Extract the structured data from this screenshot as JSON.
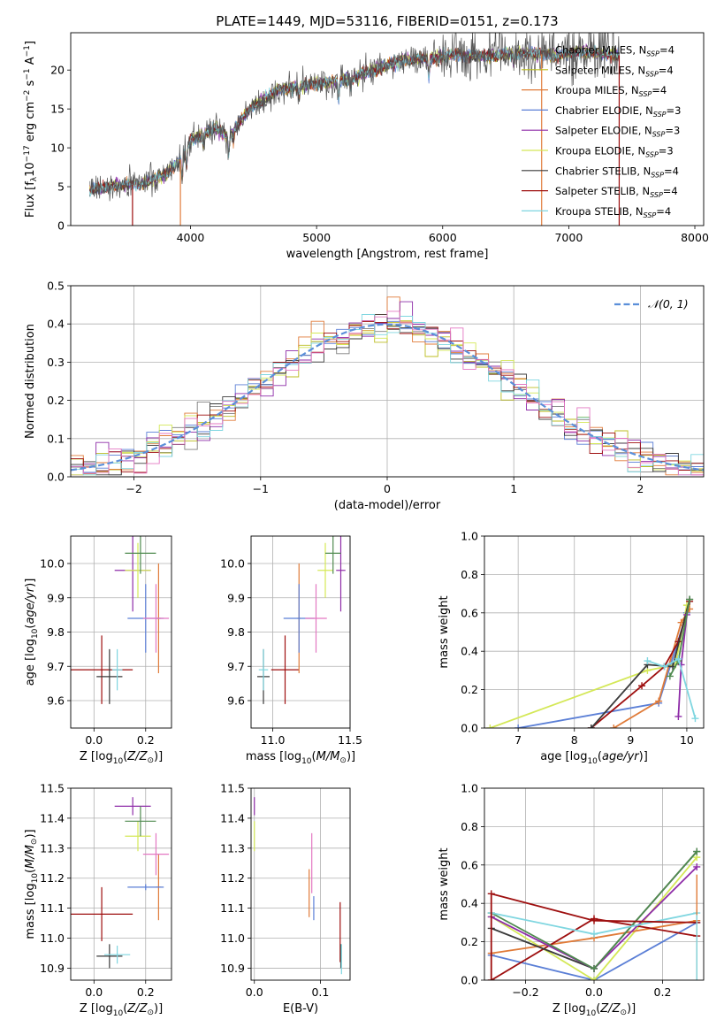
{
  "figure": {
    "title": "PLATE=1449, MJD=53116, FIBERID=0151, z=0.173"
  },
  "colors": {
    "Chabrier MILES": "#7f7f7f",
    "Salpeter MILES": "#bcbd22",
    "Kroupa MILES": "#e07b39",
    "Chabrier ELODIE": "#5b7fd6",
    "Salpeter ELODIE": "#8e2ca8",
    "Kroupa ELODIE": "#d4e857",
    "Chabrier STELIB": "#3a3a3a",
    "Salpeter STELIB": "#9e0f0f",
    "Kroupa STELIB": "#7fd6e0",
    "pink": "#e377c2",
    "green": "#4f8a4f",
    "gaussian": "#5b8fd9",
    "grid": "#b0b0b0"
  },
  "chart_data": [
    {
      "id": "spectrum",
      "type": "line",
      "title": "PLATE=1449, MJD=53116, FIBERID=0151, z=0.173",
      "xlabel": "wavelength [Angstrom, rest frame]",
      "ylabel": "Flux [fλ10⁻¹⁷ erg cm⁻² s⁻¹ A⁻¹]",
      "xlim": [
        3050,
        8070
      ],
      "ylim": [
        0,
        24.8
      ],
      "xticks": [
        4000,
        5000,
        6000,
        7000,
        8000
      ],
      "yticks": [
        0,
        5,
        10,
        15,
        20
      ],
      "grid": false,
      "legend_position": "upper right",
      "continuum": {
        "x": [
          3200,
          3400,
          3600,
          3800,
          3950,
          4000,
          4200,
          4300,
          4500,
          4700,
          4900,
          5100,
          5300,
          5500,
          5700,
          5900,
          6100,
          6300,
          6500,
          6700,
          6900,
          7100,
          7300,
          7400
        ],
        "y": [
          4.6,
          5.1,
          5.3,
          6.5,
          9.0,
          11.0,
          12.5,
          11.5,
          15.5,
          17.5,
          18.0,
          18.5,
          19.0,
          20.3,
          21.3,
          21.5,
          22.0,
          21.7,
          22.0,
          22.2,
          21.8,
          22.4,
          22.0,
          21.9
        ]
      },
      "series": [
        {
          "name": "Chabrier MILES, N_SSP=4",
          "label": "Chabrier MILES, N",
          "sub": "SSP",
          "tail": "=4"
        },
        {
          "name": "Salpeter MILES, N_SSP=4",
          "label": "Salpeter MILES, N",
          "sub": "SSP",
          "tail": "=4"
        },
        {
          "name": "Kroupa MILES, N_SSP=4",
          "label": "Kroupa MILES, N",
          "sub": "SSP",
          "tail": "=4"
        },
        {
          "name": "Chabrier ELODIE, N_SSP=3",
          "label": "Chabrier ELODIE, N",
          "sub": "SSP",
          "tail": "=3"
        },
        {
          "name": "Salpeter ELODIE, N_SSP=3",
          "label": "Salpeter ELODIE, N",
          "sub": "SSP",
          "tail": "=3"
        },
        {
          "name": "Kroupa ELODIE, N_SSP=3",
          "label": "Kroupa ELODIE, N",
          "sub": "SSP",
          "tail": "=3"
        },
        {
          "name": "Chabrier STELIB, N_SSP=4",
          "label": "Chabrier STELIB, N",
          "sub": "SSP",
          "tail": "=4"
        },
        {
          "name": "Salpeter STELIB, N_SSP=4",
          "label": "Salpeter STELIB, N",
          "sub": "SSP",
          "tail": "=4"
        },
        {
          "name": "Kroupa STELIB, N_SSP=4",
          "label": "Kroupa STELIB, N",
          "sub": "SSP",
          "tail": "=4"
        }
      ]
    },
    {
      "id": "residuals",
      "type": "line",
      "xlabel": "(data-model)/error",
      "ylabel": "Normed distribution",
      "xlim": [
        -2.5,
        2.5
      ],
      "ylim": [
        0,
        0.5
      ],
      "xticks": [
        -2,
        -1,
        0,
        1,
        2
      ],
      "yticks": [
        0.0,
        0.1,
        0.2,
        0.3,
        0.4,
        0.5
      ],
      "grid": true,
      "legend_position": "upper right",
      "legend": "𝒩(0, 1)",
      "bin_edges_step": 0.1
    },
    {
      "id": "age_vs_Z",
      "type": "scatter",
      "xlabel": "Z [log10(Z/Z⊙)]",
      "ylabel": "age  [log10(age/yr)]",
      "xlim": [
        -0.09,
        0.3
      ],
      "ylim": [
        9.52,
        10.08
      ],
      "xticks": [
        0.0,
        0.2
      ],
      "yticks": [
        9.6,
        9.7,
        9.8,
        9.9,
        10.0
      ],
      "grid": true,
      "points": [
        {
          "model": "Salpeter STELIB",
          "x": 0.03,
          "xerr": 0.12,
          "y": 9.69,
          "yerr": 0.1
        },
        {
          "model": "Chabrier STELIB",
          "x": 0.06,
          "xerr": 0.05,
          "y": 9.67,
          "yerr": 0.08
        },
        {
          "model": "Kroupa STELIB",
          "x": 0.09,
          "xerr": 0.02,
          "y": 9.69,
          "yerr": 0.06
        },
        {
          "model": "Kroupa MILES",
          "x": 0.25,
          "xerr": 0.01,
          "y": 9.84,
          "yerr": 0.16
        },
        {
          "model": "Chabrier ELODIE",
          "x": 0.2,
          "xerr": 0.07,
          "y": 9.84,
          "yerr": 0.1
        },
        {
          "model": "pink",
          "x": 0.24,
          "xerr": 0.05,
          "y": 9.84,
          "yerr": 0.1
        },
        {
          "model": "Salpeter ELODIE",
          "x": 0.15,
          "xerr": 0.07,
          "y": 9.98,
          "yerr": 0.12
        },
        {
          "model": "Kroupa ELODIE",
          "x": 0.17,
          "xerr": 0.05,
          "y": 9.98,
          "yerr": 0.08
        },
        {
          "model": "green",
          "x": 0.18,
          "xerr": 0.06,
          "y": 10.03,
          "yerr": 0.06
        }
      ]
    },
    {
      "id": "age_vs_mass",
      "type": "scatter",
      "xlabel": "mass [log10(M/M⊙)]",
      "ylabel": "",
      "xlim": [
        10.86,
        11.5
      ],
      "ylim": [
        9.52,
        10.08
      ],
      "xticks": [
        11.0,
        11.5
      ],
      "yticks": [
        9.6,
        9.7,
        9.8,
        9.9,
        10.0
      ],
      "grid": true,
      "points": [
        {
          "model": "Salpeter STELIB",
          "x": 11.08,
          "xerr": 0.09,
          "y": 9.69,
          "yerr": 0.1
        },
        {
          "model": "Chabrier STELIB",
          "x": 10.94,
          "xerr": 0.04,
          "y": 9.67,
          "yerr": 0.08
        },
        {
          "model": "Kroupa STELIB",
          "x": 10.94,
          "xerr": 0.03,
          "y": 9.69,
          "yerr": 0.06
        },
        {
          "model": "Kroupa MILES",
          "x": 11.17,
          "xerr": 0.01,
          "y": 9.84,
          "yerr": 0.16
        },
        {
          "model": "Chabrier ELODIE",
          "x": 11.17,
          "xerr": 0.1,
          "y": 9.84,
          "yerr": 0.1
        },
        {
          "model": "pink",
          "x": 11.28,
          "xerr": 0.07,
          "y": 9.84,
          "yerr": 0.1
        },
        {
          "model": "Salpeter ELODIE",
          "x": 11.44,
          "xerr": 0.03,
          "y": 9.98,
          "yerr": 0.12
        },
        {
          "model": "Kroupa ELODIE",
          "x": 11.34,
          "xerr": 0.05,
          "y": 9.98,
          "yerr": 0.08
        },
        {
          "model": "green",
          "x": 11.39,
          "xerr": 0.05,
          "y": 10.03,
          "yerr": 0.06
        }
      ]
    },
    {
      "id": "massweight_vs_age",
      "type": "line",
      "xlabel": "age  [log10(age/yr)]",
      "ylabel": "mass weight",
      "xlim": [
        6.4,
        10.3
      ],
      "ylim": [
        0,
        1.0
      ],
      "xticks": [
        7,
        8,
        9,
        10
      ],
      "yticks": [
        0.0,
        0.2,
        0.4,
        0.6,
        0.8,
        1.0
      ],
      "grid": true,
      "series": [
        {
          "model": "Chabrier ELODIE",
          "x": [
            7.0,
            9.5,
            10.0
          ],
          "y": [
            0.0,
            0.13,
            0.6
          ]
        },
        {
          "model": "Kroupa ELODIE",
          "x": [
            6.5,
            9.3,
            9.8,
            10.0
          ],
          "y": [
            0.0,
            0.3,
            0.33,
            0.64
          ]
        },
        {
          "model": "Kroupa MILES",
          "x": [
            8.7,
            9.5,
            9.9,
            10.05
          ],
          "y": [
            0.0,
            0.14,
            0.55,
            0.62
          ]
        },
        {
          "model": "Salpeter STELIB",
          "x": [
            8.3,
            9.2,
            9.6,
            9.85,
            10.05
          ],
          "y": [
            0.0,
            0.22,
            0.32,
            0.45,
            0.66
          ]
        },
        {
          "model": "Chabrier STELIB",
          "x": [
            8.3,
            9.3,
            9.75,
            10.05
          ],
          "y": [
            0.0,
            0.33,
            0.32,
            0.67
          ]
        },
        {
          "model": "Salpeter ELODIE",
          "x": [
            9.85,
            9.9,
            10.0
          ],
          "y": [
            0.06,
            0.33,
            0.59
          ]
        },
        {
          "model": "green",
          "x": [
            9.7,
            9.85,
            10.05
          ],
          "y": [
            0.27,
            0.35,
            0.67
          ]
        },
        {
          "model": "Kroupa STELIB",
          "x": [
            9.3,
            9.6,
            9.85,
            10.15
          ],
          "y": [
            0.35,
            0.32,
            0.36,
            0.05
          ]
        }
      ]
    },
    {
      "id": "mass_vs_Z",
      "type": "scatter",
      "xlabel": "Z [log10(Z/Z⊙)]",
      "ylabel": "mass [log10(M/M⊙)]",
      "xlim": [
        -0.09,
        0.3
      ],
      "ylim": [
        10.86,
        11.5
      ],
      "xticks": [
        0.0,
        0.2
      ],
      "yticks": [
        10.9,
        11.0,
        11.1,
        11.2,
        11.3,
        11.4,
        11.5
      ],
      "grid": true,
      "points": [
        {
          "model": "Salpeter STELIB",
          "x": 0.03,
          "xerr": 0.12,
          "y": 11.08,
          "yerr": 0.09
        },
        {
          "model": "Chabrier STELIB",
          "x": 0.06,
          "xerr": 0.05,
          "y": 10.94,
          "yerr": 0.04
        },
        {
          "model": "Kroupa STELIB",
          "x": 0.09,
          "xerr": 0.05,
          "y": 10.945,
          "yerr": 0.03
        },
        {
          "model": "Kroupa MILES",
          "x": 0.25,
          "xerr": 0.01,
          "y": 11.17,
          "yerr": 0.11
        },
        {
          "model": "Chabrier ELODIE",
          "x": 0.2,
          "xerr": 0.07,
          "y": 11.17,
          "yerr": 0.01
        },
        {
          "model": "pink",
          "x": 0.24,
          "xerr": 0.05,
          "y": 11.28,
          "yerr": 0.07
        },
        {
          "model": "Salpeter ELODIE",
          "x": 0.15,
          "xerr": 0.07,
          "y": 11.44,
          "yerr": 0.03
        },
        {
          "model": "Kroupa ELODIE",
          "x": 0.17,
          "xerr": 0.05,
          "y": 11.34,
          "yerr": 0.05
        },
        {
          "model": "green",
          "x": 0.18,
          "xerr": 0.06,
          "y": 11.39,
          "yerr": 0.05
        }
      ]
    },
    {
      "id": "mass_vs_EBV",
      "type": "scatter",
      "xlabel": "E(B-V)",
      "ylabel": "",
      "xlim": [
        -0.005,
        0.145
      ],
      "ylim": [
        10.86,
        11.5
      ],
      "xticks": [
        0.0,
        0.1
      ],
      "yticks": [
        10.9,
        11.0,
        11.1,
        11.2,
        11.3,
        11.4,
        11.5
      ],
      "grid": true,
      "points": [
        {
          "model": "Salpeter ELODIE",
          "x": 0.0,
          "xerr": 0,
          "y": 11.44,
          "yerr": 0.03
        },
        {
          "model": "Kroupa ELODIE",
          "x": 0.0,
          "xerr": 0,
          "y": 11.34,
          "yerr": 0.05
        },
        {
          "model": "Kroupa MILES",
          "x": 0.083,
          "xerr": 0,
          "y": 11.15,
          "yerr": 0.08
        },
        {
          "model": "pink",
          "x": 0.087,
          "xerr": 0,
          "y": 11.25,
          "yerr": 0.1
        },
        {
          "model": "Chabrier ELODIE",
          "x": 0.09,
          "xerr": 0,
          "y": 11.1,
          "yerr": 0.04
        },
        {
          "model": "Salpeter STELIB",
          "x": 0.13,
          "xerr": 0,
          "y": 11.02,
          "yerr": 0.1
        },
        {
          "model": "Chabrier STELIB",
          "x": 0.131,
          "xerr": 0,
          "y": 10.94,
          "yerr": 0.04
        },
        {
          "model": "Kroupa STELIB",
          "x": 0.132,
          "xerr": 0,
          "y": 10.93,
          "yerr": 0.05
        }
      ]
    },
    {
      "id": "massweight_vs_Z",
      "type": "line",
      "xlabel": "Z [log10(Z/Z⊙)]",
      "ylabel": "mass weight",
      "xlim": [
        -0.32,
        0.32
      ],
      "ylim": [
        0,
        1.0
      ],
      "xticks": [
        -0.2,
        0.0,
        0.2
      ],
      "yticks": [
        0.0,
        0.2,
        0.4,
        0.6,
        0.8,
        1.0
      ],
      "grid": true,
      "series": [
        {
          "model": "Chabrier ELODIE",
          "x": [
            -0.3,
            0.0,
            0.3
          ],
          "y": [
            0.13,
            0.0,
            0.3
          ]
        },
        {
          "model": "Kroupa ELODIE",
          "x": [
            -0.3,
            0.0,
            0.3
          ],
          "y": [
            0.33,
            0.0,
            0.64
          ]
        },
        {
          "model": "Kroupa MILES",
          "x": [
            -0.3,
            0.0,
            0.3
          ],
          "y": [
            0.14,
            0.22,
            0.31
          ]
        },
        {
          "model": "Salpeter STELIB",
          "x": [
            -0.3,
            0.0,
            0.3
          ],
          "y": [
            0.0,
            0.32,
            0.23
          ]
        },
        {
          "model": "Chabrier STELIB",
          "x": [
            -0.3,
            0.0,
            0.3
          ],
          "y": [
            0.27,
            0.06,
            0.67
          ]
        },
        {
          "model": "Salpeter ELODIE",
          "x": [
            -0.3,
            0.0,
            0.3
          ],
          "y": [
            0.33,
            0.06,
            0.59
          ]
        },
        {
          "model": "green",
          "x": [
            -0.3,
            0.0,
            0.3
          ],
          "y": [
            0.35,
            0.06,
            0.67
          ]
        },
        {
          "model": "Kroupa STELIB",
          "x": [
            -0.3,
            0.0,
            0.3
          ],
          "y": [
            0.35,
            0.24,
            0.35
          ]
        },
        {
          "model": "Salpeter STELIB",
          "x": [
            -0.3,
            0.0,
            0.3
          ],
          "y": [
            0.45,
            0.31,
            0.3
          ]
        }
      ]
    }
  ]
}
